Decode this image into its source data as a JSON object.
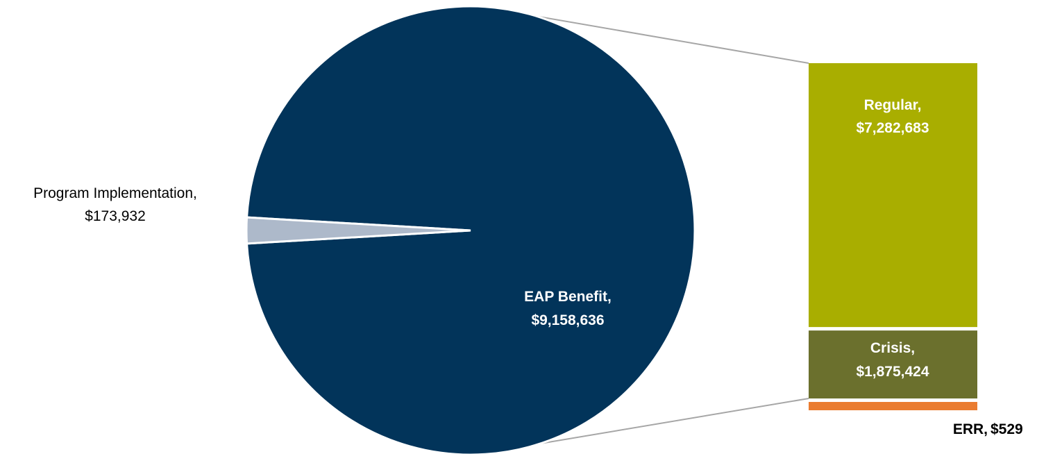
{
  "chart_data": {
    "type": "pie",
    "variant": "bar-of-pie",
    "slices": [
      {
        "label": "EAP Benefit,",
        "value_label": "$9,158,636",
        "value": 9158636,
        "color": "#02345a"
      },
      {
        "label": "Program Implementation,",
        "value_label": "$173,932",
        "value": 173932,
        "color": "#adb9ca"
      }
    ],
    "breakdown_of": "EAP Benefit",
    "stack": [
      {
        "label": "Regular,",
        "value_label": "$7,282,683",
        "value": 7282683,
        "color": "#a9ae00"
      },
      {
        "label": "Crisis,",
        "value_label": "$1,875,424",
        "value": 1875424,
        "color": "#6b702d"
      },
      {
        "label": "ERR,",
        "value_label": "$529",
        "value": 529,
        "color": "#ea7c31"
      }
    ],
    "legend": "none",
    "grid": false
  }
}
